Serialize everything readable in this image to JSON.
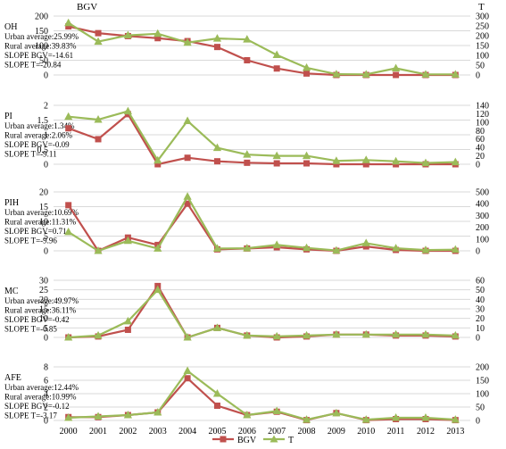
{
  "header": {
    "left_axis_label": "BGV",
    "right_axis_label": "T"
  },
  "legend": [
    {
      "name": "BGV",
      "color": "#c0504d",
      "marker": "square"
    },
    {
      "name": "T",
      "color": "#9bbb59",
      "marker": "triangle"
    }
  ],
  "chart_data": [
    {
      "type": "line",
      "title": "OH",
      "annotations": [
        "Urban average:25.99%",
        "Rural average:39.83%",
        "SLOPE BGV=-14.61",
        "SLOPE T=-20.84"
      ],
      "x": [
        2000,
        2001,
        2002,
        2003,
        2004,
        2005,
        2006,
        2007,
        2008,
        2009,
        2010,
        2011,
        2012,
        2013
      ],
      "series": [
        {
          "name": "BGV",
          "axis": "left",
          "values": [
            165,
            142,
            132,
            125,
            115,
            95,
            50,
            22,
            5,
            0,
            0,
            0,
            0,
            0
          ]
        },
        {
          "name": "T",
          "axis": "right",
          "values": [
            265,
            170,
            202,
            210,
            165,
            186,
            181,
            102,
            37,
            4,
            3,
            34,
            3,
            3
          ]
        }
      ],
      "left_ylim": [
        0,
        200
      ],
      "left_ticks": [
        0,
        50,
        100,
        150,
        200
      ],
      "right_ylim": [
        0,
        300
      ],
      "right_ticks": [
        0,
        50,
        100,
        150,
        200,
        250,
        300
      ],
      "grid": true
    },
    {
      "type": "line",
      "title": "PI",
      "annotations": [
        "Urban average:1.34%",
        "Rural average:2.06%",
        "SLOPE BGV=-0.09",
        "SLOPE T=-9.11"
      ],
      "x": [
        2000,
        2001,
        2002,
        2003,
        2004,
        2005,
        2006,
        2007,
        2008,
        2009,
        2010,
        2011,
        2012,
        2013
      ],
      "series": [
        {
          "name": "BGV",
          "axis": "left",
          "values": [
            1.22,
            0.85,
            1.7,
            0.0,
            0.22,
            0.1,
            0.05,
            0.03,
            0.03,
            0.0,
            0.0,
            0.0,
            0.0,
            0.0
          ]
        },
        {
          "name": "T",
          "axis": "right",
          "values": [
            113,
            106,
            126,
            9,
            103,
            39,
            23,
            20,
            20,
            8,
            10,
            7,
            3,
            5
          ]
        }
      ],
      "left_ylim": [
        0,
        2
      ],
      "left_ticks": [
        0,
        0.5,
        1,
        1.5,
        2
      ],
      "right_ylim": [
        0,
        140
      ],
      "right_ticks": [
        0,
        20,
        40,
        60,
        80,
        100,
        120,
        140
      ],
      "grid": true
    },
    {
      "type": "line",
      "title": "PIH",
      "annotations": [
        "Urban average:10.69%",
        "Rural average:11.31%",
        "SLOPE BGV=0.71",
        "SLOPE T=-9.96"
      ],
      "x": [
        2000,
        2001,
        2002,
        2003,
        2004,
        2005,
        2006,
        2007,
        2008,
        2009,
        2010,
        2011,
        2012,
        2013
      ],
      "series": [
        {
          "name": "BGV",
          "axis": "left",
          "values": [
            15.5,
            0,
            4.5,
            2,
            16,
            0.5,
            0.8,
            1.2,
            0.5,
            0,
            1.5,
            0.3,
            0,
            0
          ]
        },
        {
          "name": "T",
          "axis": "right",
          "values": [
            160,
            0,
            85,
            20,
            460,
            20,
            22,
            50,
            25,
            3,
            65,
            22,
            7,
            10
          ]
        }
      ],
      "left_ylim": [
        0,
        20
      ],
      "left_ticks": [
        0,
        5,
        10,
        15,
        20
      ],
      "right_ylim": [
        0,
        500
      ],
      "right_ticks": [
        0,
        100,
        200,
        300,
        400,
        500
      ],
      "grid": true
    },
    {
      "type": "line",
      "title": "MC",
      "annotations": [
        "Urban average:49.97%",
        "Rural average:36.11%",
        "SLOPE BGV=-0.42",
        "SLOPE T=-0.85"
      ],
      "x": [
        2000,
        2001,
        2002,
        2003,
        2004,
        2005,
        2006,
        2007,
        2008,
        2009,
        2010,
        2011,
        2012,
        2013
      ],
      "series": [
        {
          "name": "BGV",
          "axis": "left",
          "values": [
            0,
            0.5,
            4,
            27,
            0,
            5,
            1,
            0,
            0.5,
            1.5,
            1.5,
            1,
            1,
            0.5
          ]
        },
        {
          "name": "T",
          "axis": "right",
          "values": [
            0,
            2,
            17,
            50,
            0,
            10,
            2,
            1,
            2,
            3,
            3,
            3,
            3,
            2
          ]
        }
      ],
      "left_ylim": [
        0,
        30
      ],
      "left_ticks": [
        0,
        5,
        10,
        15,
        20,
        25,
        30
      ],
      "right_ylim": [
        0,
        60
      ],
      "right_ticks": [
        0,
        10,
        20,
        30,
        40,
        50,
        60
      ],
      "grid": true
    },
    {
      "type": "line",
      "title": "AFE",
      "annotations": [
        "Urban average:12.44%",
        "Rural average:10.99%",
        "SLOPE BGV=-0.12",
        "SLOPE T=-3.17"
      ],
      "x": [
        2000,
        2001,
        2002,
        2003,
        2004,
        2005,
        2006,
        2007,
        2008,
        2009,
        2010,
        2011,
        2012,
        2013
      ],
      "series": [
        {
          "name": "BGV",
          "axis": "left",
          "values": [
            0.5,
            0.5,
            0.8,
            1.2,
            6.3,
            2.2,
            0.8,
            1.3,
            0.05,
            1.1,
            0.05,
            0.2,
            0.2,
            0.05
          ]
        },
        {
          "name": "T",
          "axis": "right",
          "values": [
            10,
            15,
            20,
            30,
            185,
            100,
            20,
            35,
            3,
            27,
            3,
            10,
            10,
            3
          ]
        }
      ],
      "left_ylim": [
        0,
        8
      ],
      "left_ticks": [
        0,
        2,
        4,
        6,
        8
      ],
      "right_ylim": [
        0,
        200
      ],
      "right_ticks": [
        0,
        50,
        100,
        150,
        200
      ],
      "grid": true
    }
  ]
}
